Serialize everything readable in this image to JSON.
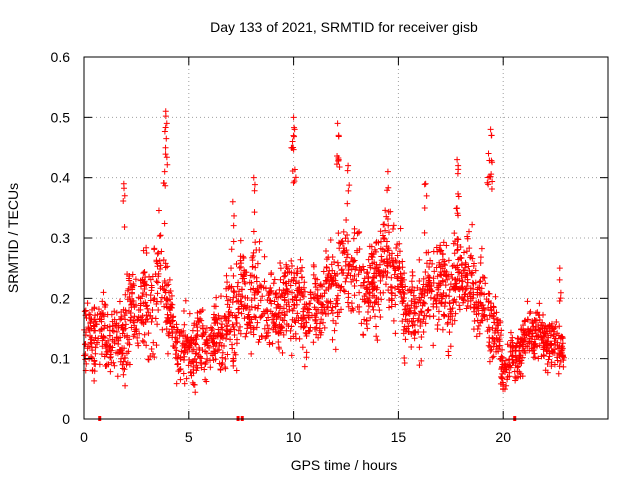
{
  "chart_data": {
    "type": "scatter",
    "title": "Day 133 of 2021, SRMTID for receiver gisb",
    "xlabel": "GPS time / hours",
    "ylabel": "SRMTID / TECUs",
    "xlim": [
      0,
      25
    ],
    "ylim": [
      0,
      0.6
    ],
    "x_ticks": [
      0,
      5,
      10,
      15,
      20
    ],
    "y_ticks": [
      0,
      0.1,
      0.2,
      0.3,
      0.4,
      0.5,
      0.6
    ],
    "y_tick_labels": [
      "0",
      "0.1",
      "0.2",
      "0.3",
      "0.4",
      "0.5",
      "0.6"
    ],
    "grid": true,
    "marker": "+",
    "point_color": "#ff0000",
    "baseline_marks_x": [
      0.75,
      7.35,
      7.55,
      20.55
    ],
    "series": [
      {
        "name": "SRMTID",
        "trend_x": [
          0,
          0.5,
          1.0,
          1.5,
          2.0,
          2.5,
          3.0,
          3.5,
          3.8,
          4.2,
          4.6,
          5.0,
          5.5,
          6.0,
          6.5,
          7.0,
          7.3,
          7.6,
          8.0,
          8.5,
          9.0,
          9.5,
          10.0,
          10.5,
          11.0,
          11.5,
          12.0,
          12.5,
          13.0,
          13.5,
          14.0,
          14.5,
          15.0,
          15.5,
          16.0,
          16.5,
          17.0,
          17.5,
          18.0,
          18.5,
          19.0,
          19.5,
          20.0,
          20.5,
          21.0,
          21.5,
          22.0,
          22.5,
          22.9
        ],
        "trend_y": [
          0.12,
          0.15,
          0.14,
          0.12,
          0.16,
          0.17,
          0.19,
          0.22,
          0.24,
          0.14,
          0.13,
          0.11,
          0.13,
          0.12,
          0.15,
          0.16,
          0.19,
          0.2,
          0.21,
          0.19,
          0.18,
          0.19,
          0.2,
          0.18,
          0.17,
          0.19,
          0.23,
          0.25,
          0.24,
          0.21,
          0.24,
          0.26,
          0.23,
          0.17,
          0.19,
          0.21,
          0.22,
          0.2,
          0.25,
          0.22,
          0.19,
          0.16,
          0.08,
          0.1,
          0.13,
          0.15,
          0.13,
          0.12,
          0.13
        ],
        "spread": [
          0.05,
          0.06,
          0.05,
          0.05,
          0.07,
          0.06,
          0.07,
          0.08,
          0.09,
          0.06,
          0.05,
          0.05,
          0.05,
          0.05,
          0.06,
          0.07,
          0.08,
          0.07,
          0.08,
          0.07,
          0.06,
          0.06,
          0.07,
          0.06,
          0.06,
          0.06,
          0.07,
          0.07,
          0.07,
          0.07,
          0.08,
          0.08,
          0.07,
          0.06,
          0.07,
          0.07,
          0.07,
          0.07,
          0.07,
          0.07,
          0.07,
          0.06,
          0.04,
          0.04,
          0.04,
          0.04,
          0.04,
          0.04,
          0.04
        ],
        "sample_count": 2300,
        "peaks": [
          {
            "x": 1.9,
            "y": 0.39
          },
          {
            "x": 3.9,
            "y": 0.51
          },
          {
            "x": 3.95,
            "y": 0.49
          },
          {
            "x": 3.85,
            "y": 0.41
          },
          {
            "x": 7.1,
            "y": 0.36
          },
          {
            "x": 8.1,
            "y": 0.4
          },
          {
            "x": 10.0,
            "y": 0.5
          },
          {
            "x": 10.05,
            "y": 0.48
          },
          {
            "x": 9.95,
            "y": 0.46
          },
          {
            "x": 12.1,
            "y": 0.49
          },
          {
            "x": 12.15,
            "y": 0.47
          },
          {
            "x": 12.6,
            "y": 0.42
          },
          {
            "x": 14.5,
            "y": 0.41
          },
          {
            "x": 16.3,
            "y": 0.39
          },
          {
            "x": 17.8,
            "y": 0.43
          },
          {
            "x": 17.85,
            "y": 0.42
          },
          {
            "x": 19.4,
            "y": 0.48
          },
          {
            "x": 19.45,
            "y": 0.47
          },
          {
            "x": 19.3,
            "y": 0.44
          },
          {
            "x": 22.7,
            "y": 0.25
          }
        ]
      }
    ]
  }
}
